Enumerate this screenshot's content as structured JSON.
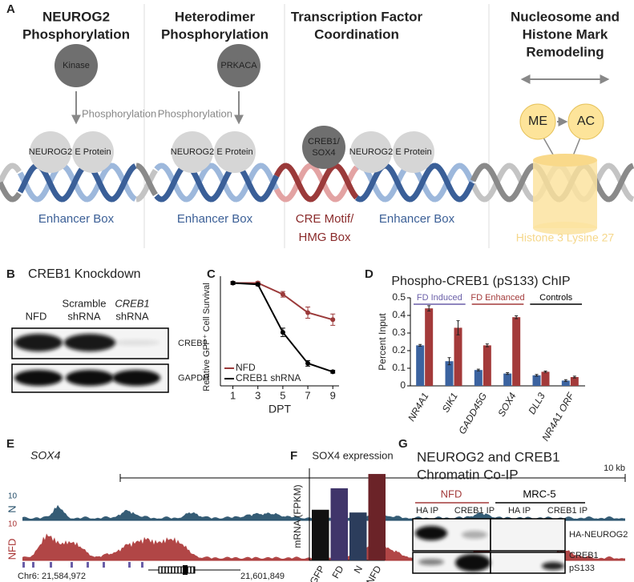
{
  "panel_labels": [
    "A",
    "B",
    "C",
    "D",
    "E",
    "F",
    "G"
  ],
  "panel_a": {
    "titles": [
      [
        "NEUROG2",
        "Phosphorylation"
      ],
      [
        "Heterodimer",
        "Phosphorylation"
      ],
      [
        "Transcription Factor",
        "Coordination"
      ],
      [
        "Nucleosome and",
        "Histone Mark",
        "Remodeling"
      ]
    ],
    "kinases": [
      "Kinase",
      "PRKACA"
    ],
    "arrow_labels": [
      "Phosphorylation",
      "Phosphorylation"
    ],
    "proteins": [
      "NEUROG2",
      "E Protein",
      "NEUROG2",
      "E Protein",
      "NEUROG2",
      "E Protein"
    ],
    "tf": [
      "CREB1/",
      "SOX4"
    ],
    "marks": [
      "ME",
      "AC"
    ],
    "dna_labels": [
      "Enhancer Box",
      "Enhancer Box",
      [
        "CRE Motif/",
        "HMG Box"
      ],
      "Enhancer Box",
      "Histone 3 Lysine 27"
    ]
  },
  "panel_b": {
    "title": "CREB1 Knockdown",
    "lanes": [
      [
        "NFD"
      ],
      [
        "Scramble",
        "shRNA"
      ],
      [
        "CREB1",
        "shRNA"
      ]
    ],
    "rows": [
      "CREB1",
      "GAPDH"
    ]
  },
  "panel_e": {
    "gene": "SOX4",
    "scale": "10 kb",
    "tracks": [
      {
        "name": "N",
        "ymax": 10,
        "color": "#1f4a66"
      },
      {
        "name": "NFD",
        "ymax": 10,
        "color": "#a83232"
      }
    ],
    "coords": [
      "Chr6: 21,584,972",
      "21,601,849"
    ]
  },
  "panel_g": {
    "title": [
      "NEUROG2 and CREB1",
      "Chromatin Co-IP"
    ],
    "groups": [
      "NFD",
      "MRC-5"
    ],
    "lanes": [
      "HA IP",
      "CREB1 IP",
      "HA IP",
      "CREB1 IP"
    ],
    "rows": [
      "HA-NEUROG2",
      "CREB1",
      "pS133"
    ]
  },
  "chart_data": [
    {
      "type": "line",
      "x": [
        1,
        3,
        5,
        7,
        9
      ],
      "xlim": [
        0,
        9.5
      ],
      "xticks": [
        1,
        3,
        5,
        7,
        9
      ],
      "xlabel": "DPT",
      "ylabel": "Relative GFP⁺ Cell Survival",
      "ylim": [
        0.25,
        1.0
      ],
      "legend": "lower left",
      "series": [
        {
          "name": "NFD",
          "color": "#9b3a3a",
          "values": [
            0.98,
            0.98,
            0.9,
            0.77,
            0.72
          ],
          "errors": [
            0.01,
            0.01,
            0.02,
            0.04,
            0.04
          ]
        },
        {
          "name": "CREB1 shRNA",
          "color": "#000000",
          "values": [
            0.98,
            0.97,
            0.63,
            0.41,
            0.35
          ],
          "errors": [
            0.01,
            0.01,
            0.03,
            0.02,
            0.01
          ]
        }
      ]
    },
    {
      "type": "bar",
      "title": "Phospho-CREB1 (pS133) ChIP",
      "ylabel": "Percent Input",
      "categories": [
        "NR4A1",
        "SIK1",
        "GADD45G",
        "SOX4",
        "DLL3",
        "NR4A1 ORF"
      ],
      "ylim": [
        0,
        0.5
      ],
      "yticks": [
        0,
        0.1,
        0.2,
        0.3,
        0.4,
        0.5
      ],
      "series": [
        {
          "color": "#3b63a0",
          "values": [
            0.23,
            0.14,
            0.09,
            0.07,
            0.06,
            0.03
          ],
          "errors": [
            0.005,
            0.02,
            0.005,
            0.005,
            0.005,
            0.005
          ]
        },
        {
          "color": "#a33a3a",
          "values": [
            0.44,
            0.33,
            0.23,
            0.39,
            0.08,
            0.05
          ],
          "errors": [
            0.015,
            0.04,
            0.008,
            0.008,
            0.004,
            0.005
          ]
        }
      ],
      "annotations": [
        {
          "text": "FD Induced",
          "color": "#6a5fa8"
        },
        {
          "text": "FD Enhanced",
          "color": "#a33a3a"
        },
        {
          "text": "Controls",
          "color": "#000000"
        }
      ]
    },
    {
      "type": "bar",
      "title": "SOX4 expression",
      "ylabel": "mRNA (FPKM)",
      "categories": [
        "GFP",
        "FD",
        "N",
        "NFD"
      ],
      "values": [
        92,
        131,
        87,
        157
      ],
      "colors": [
        "#111111",
        "#40356a",
        "#2c3d5c",
        "#6b2328"
      ],
      "ylim": [
        0,
        160
      ]
    }
  ]
}
